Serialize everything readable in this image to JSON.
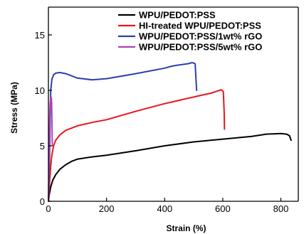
{
  "chart_data": {
    "type": "line",
    "xlabel": "Strain (%)",
    "ylabel": "Stress (MPa)",
    "xlim": [
      0,
      860
    ],
    "ylim": [
      0,
      17.5
    ],
    "xticks": [
      0,
      200,
      400,
      600,
      800
    ],
    "yticks": [
      0,
      5,
      10,
      15
    ],
    "grid": false,
    "legend_position": "top-right",
    "series": [
      {
        "name": "WPU/PEDOT:PSS",
        "color": "#000000",
        "points": [
          [
            0,
            0
          ],
          [
            3,
            0.6
          ],
          [
            8,
            1.3
          ],
          [
            15,
            1.9
          ],
          [
            25,
            2.4
          ],
          [
            40,
            2.9
          ],
          [
            60,
            3.3
          ],
          [
            80,
            3.6
          ],
          [
            100,
            3.8
          ],
          [
            150,
            4.0
          ],
          [
            200,
            4.15
          ],
          [
            300,
            4.55
          ],
          [
            400,
            5.0
          ],
          [
            500,
            5.35
          ],
          [
            600,
            5.6
          ],
          [
            700,
            5.85
          ],
          [
            750,
            6.05
          ],
          [
            800,
            6.1
          ],
          [
            820,
            6.05
          ],
          [
            830,
            5.9
          ],
          [
            835,
            5.5
          ]
        ]
      },
      {
        "name": "HI-treated WPU/PEDOT:PSS",
        "color": "#e8161c",
        "points": [
          [
            0,
            0
          ],
          [
            2,
            0.8
          ],
          [
            5,
            2.0
          ],
          [
            8,
            3.2
          ],
          [
            12,
            4.2
          ],
          [
            18,
            5.0
          ],
          [
            25,
            5.5
          ],
          [
            40,
            6.0
          ],
          [
            60,
            6.4
          ],
          [
            100,
            6.8
          ],
          [
            150,
            7.1
          ],
          [
            200,
            7.35
          ],
          [
            300,
            8.1
          ],
          [
            400,
            8.8
          ],
          [
            500,
            9.4
          ],
          [
            560,
            9.75
          ],
          [
            595,
            10.05
          ],
          [
            602,
            9.9
          ],
          [
            605,
            8.0
          ],
          [
            606,
            6.5
          ]
        ]
      },
      {
        "name": "WPU/PEDOT:PSS/1wt% rGO",
        "color": "#2e3fa8",
        "points": [
          [
            0,
            0
          ],
          [
            2,
            1.5
          ],
          [
            4,
            4.0
          ],
          [
            6,
            7.5
          ],
          [
            8,
            10.0
          ],
          [
            12,
            11.0
          ],
          [
            18,
            11.4
          ],
          [
            25,
            11.55
          ],
          [
            40,
            11.6
          ],
          [
            60,
            11.5
          ],
          [
            100,
            11.1
          ],
          [
            150,
            10.95
          ],
          [
            200,
            11.05
          ],
          [
            300,
            11.5
          ],
          [
            400,
            12.0
          ],
          [
            420,
            12.15
          ],
          [
            440,
            12.25
          ],
          [
            480,
            12.4
          ],
          [
            495,
            12.5
          ],
          [
            505,
            12.4
          ],
          [
            508,
            11.0
          ],
          [
            510,
            10.0
          ]
        ]
      },
      {
        "name": "WPU/PEDOT:PSS/5wt% rGO",
        "color": "#b43fb4",
        "points": [
          [
            0,
            0
          ],
          [
            1,
            1.5
          ],
          [
            2,
            3.5
          ],
          [
            3,
            5.5
          ],
          [
            4,
            7.0
          ],
          [
            5,
            8.0
          ],
          [
            6,
            8.8
          ],
          [
            7,
            9.2
          ],
          [
            8,
            9.3
          ],
          [
            10,
            9.35
          ],
          [
            11,
            9.0
          ],
          [
            12,
            7.5
          ],
          [
            13,
            5.5
          ],
          [
            13.5,
            5.0
          ]
        ]
      }
    ]
  }
}
